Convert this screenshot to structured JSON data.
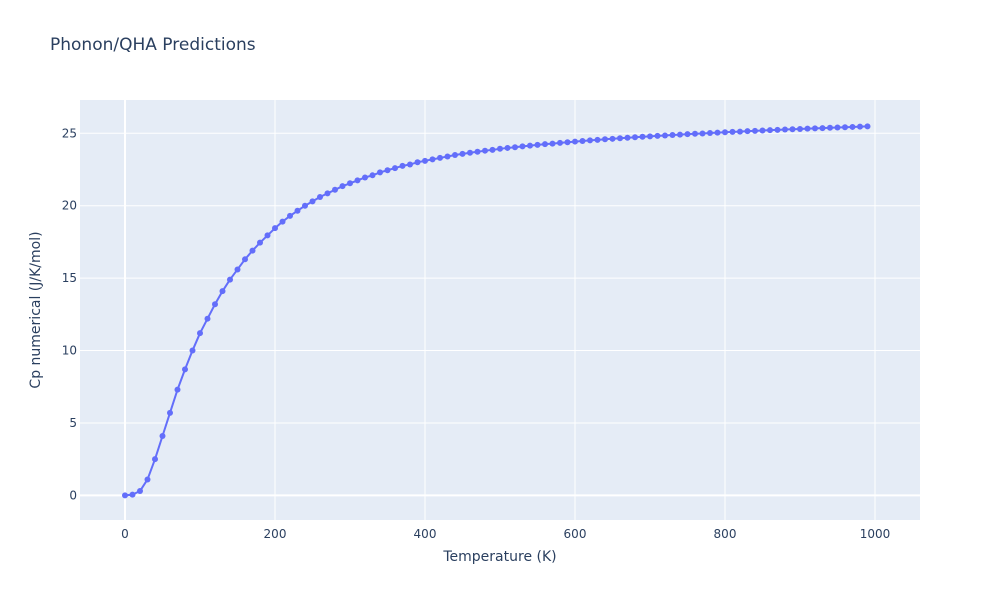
{
  "colors": {
    "plot_background": "#e5ecf6",
    "grid": "#ffffff",
    "series": "#636efa",
    "text": "#2a3f5f"
  },
  "chart_data": {
    "type": "line",
    "title": "Phonon/QHA Predictions",
    "xlabel": "Temperature (K)",
    "ylabel": "Cp numerical (J/K/mol)",
    "xlim": [
      -60,
      1060
    ],
    "ylim": [
      -1.7,
      27.3
    ],
    "xticks": [
      0,
      200,
      400,
      600,
      800,
      1000
    ],
    "yticks": [
      0,
      5,
      10,
      15,
      20,
      25
    ],
    "grid": true,
    "markers": true,
    "series": [
      {
        "x": [
          0,
          10,
          20,
          30,
          40,
          50,
          60,
          70,
          80,
          90,
          100,
          110,
          120,
          130,
          140,
          150,
          160,
          170,
          180,
          190,
          200,
          210,
          220,
          230,
          240,
          250,
          260,
          270,
          280,
          290,
          300,
          310,
          320,
          330,
          340,
          350,
          360,
          370,
          380,
          390,
          400,
          410,
          420,
          430,
          440,
          450,
          460,
          470,
          480,
          490,
          500,
          510,
          520,
          530,
          540,
          550,
          560,
          570,
          580,
          590,
          600,
          610,
          620,
          630,
          640,
          650,
          660,
          670,
          680,
          690,
          700,
          710,
          720,
          730,
          740,
          750,
          760,
          770,
          780,
          790,
          800,
          810,
          820,
          830,
          840,
          850,
          860,
          870,
          880,
          890,
          900,
          910,
          920,
          930,
          940,
          950,
          960,
          970,
          980,
          990
        ],
        "y": [
          0,
          0.05,
          0.3,
          1.1,
          2.5,
          4.1,
          5.7,
          7.3,
          8.7,
          10.0,
          11.2,
          12.2,
          13.2,
          14.1,
          14.9,
          15.6,
          16.3,
          16.9,
          17.45,
          17.95,
          18.45,
          18.9,
          19.3,
          19.65,
          20.0,
          20.3,
          20.6,
          20.85,
          21.1,
          21.35,
          21.55,
          21.75,
          21.95,
          22.1,
          22.3,
          22.45,
          22.6,
          22.75,
          22.85,
          23.0,
          23.1,
          23.2,
          23.3,
          23.4,
          23.5,
          23.58,
          23.66,
          23.73,
          23.8,
          23.86,
          23.93,
          23.99,
          24.04,
          24.1,
          24.15,
          24.2,
          24.25,
          24.29,
          24.34,
          24.38,
          24.43,
          24.47,
          24.51,
          24.55,
          24.59,
          24.62,
          24.66,
          24.69,
          24.73,
          24.76,
          24.79,
          24.82,
          24.85,
          24.88,
          24.91,
          24.94,
          24.97,
          24.99,
          25.02,
          25.05,
          25.07,
          25.1,
          25.12,
          25.15,
          25.17,
          25.19,
          25.22,
          25.24,
          25.26,
          25.28,
          25.3,
          25.32,
          25.34,
          25.36,
          25.38,
          25.4,
          25.42,
          25.44,
          25.46,
          25.48
        ]
      }
    ]
  }
}
